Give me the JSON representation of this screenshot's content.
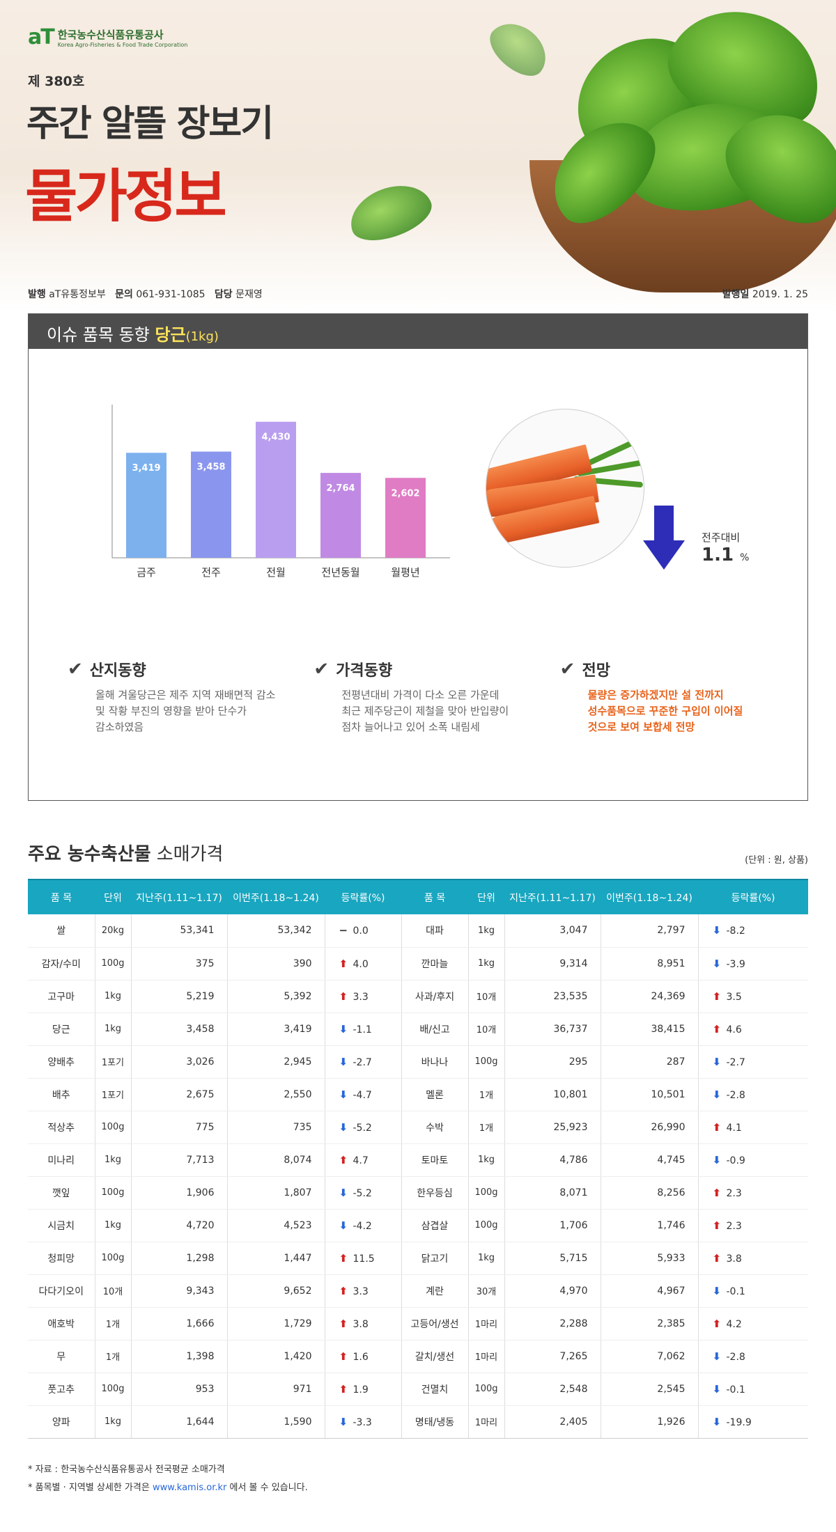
{
  "header": {
    "logo_mark": "aT",
    "logo_ko": "한국농수산식품유통공사",
    "logo_en": "Korea Agro-Fisheries & Food Trade Corporation",
    "issue": "제 380호",
    "title": "주간 알뜰 장보기",
    "big_title": "물가정보"
  },
  "meta": {
    "publisher_label": "발행",
    "publisher": "aT유통정보부",
    "contact_label": "문의",
    "contact": "061-931-1085",
    "manager_label": "담당",
    "manager": "문재영",
    "date_label": "발행일",
    "date": "2019. 1. 25"
  },
  "issue_section": {
    "title": "이슈 품목 동향",
    "item": "당근",
    "unit": "(1kg)",
    "compare_label": "전주대비",
    "compare_value": "1.1",
    "compare_unit": "%",
    "notes": [
      {
        "title": "산지동향",
        "body": [
          "올해 겨울당근은 제주 지역 재배면적 감소",
          "및 작황 부진의 영향을 받아 단수가",
          "감소하였음"
        ]
      },
      {
        "title": "가격동향",
        "body": [
          "전평년대비 가격이 다소 오른 가운데",
          "최근 제주당근이 제철을 맞아 반입량이",
          "점차 늘어나고 있어 소폭 내림세"
        ]
      },
      {
        "title": "전망",
        "body": [
          "물량은 증가하겠지만 설 전까지",
          "성수품목으로 꾸준한 구입이 이어질",
          "것으로 보여 보합세 전망"
        ]
      }
    ]
  },
  "chart_data": {
    "type": "bar",
    "categories": [
      "금주",
      "전주",
      "전월",
      "전년동월",
      "월평년"
    ],
    "values": [
      3419,
      3458,
      4430,
      2764,
      2602
    ],
    "value_labels": [
      "3,419",
      "3,458",
      "4,430",
      "2,764",
      "2,602"
    ],
    "colors": [
      "#7db1ee",
      "#8a96ee",
      "#b99ef0",
      "#c08ae4",
      "#e07cc4"
    ],
    "ylim": [
      0,
      5000
    ]
  },
  "table": {
    "title_bold": "주요 농수축산물",
    "title_rest": " 소매가격",
    "unit_note": "(단위 : 원, 상품)",
    "headers": [
      "품 목",
      "단위",
      "지난주(1.11~1.17)",
      "이번주(1.18~1.24)",
      "등락률(%)",
      "품 목",
      "단위",
      "지난주(1.11~1.17)",
      "이번주(1.18~1.24)",
      "등락률(%)"
    ],
    "rows": [
      [
        "쌀",
        "20kg",
        "53,341",
        "53,342",
        "flat",
        "0.0",
        "대파",
        "1kg",
        "3,047",
        "2,797",
        "down",
        "-8.2"
      ],
      [
        "감자/수미",
        "100g",
        "375",
        "390",
        "up",
        "4.0",
        "깐마늘",
        "1kg",
        "9,314",
        "8,951",
        "down",
        "-3.9"
      ],
      [
        "고구마",
        "1kg",
        "5,219",
        "5,392",
        "up",
        "3.3",
        "사과/후지",
        "10개",
        "23,535",
        "24,369",
        "up",
        "3.5"
      ],
      [
        "당근",
        "1kg",
        "3,458",
        "3,419",
        "down",
        "-1.1",
        "배/신고",
        "10개",
        "36,737",
        "38,415",
        "up",
        "4.6"
      ],
      [
        "양배추",
        "1포기",
        "3,026",
        "2,945",
        "down",
        "-2.7",
        "바나나",
        "100g",
        "295",
        "287",
        "down",
        "-2.7"
      ],
      [
        "배추",
        "1포기",
        "2,675",
        "2,550",
        "down",
        "-4.7",
        "멜론",
        "1개",
        "10,801",
        "10,501",
        "down",
        "-2.8"
      ],
      [
        "적상추",
        "100g",
        "775",
        "735",
        "down",
        "-5.2",
        "수박",
        "1개",
        "25,923",
        "26,990",
        "up",
        "4.1"
      ],
      [
        "미나리",
        "1kg",
        "7,713",
        "8,074",
        "up",
        "4.7",
        "토마토",
        "1kg",
        "4,786",
        "4,745",
        "down",
        "-0.9"
      ],
      [
        "깻잎",
        "100g",
        "1,906",
        "1,807",
        "down",
        "-5.2",
        "한우등심",
        "100g",
        "8,071",
        "8,256",
        "up",
        "2.3"
      ],
      [
        "시금치",
        "1kg",
        "4,720",
        "4,523",
        "down",
        "-4.2",
        "삼겹살",
        "100g",
        "1,706",
        "1,746",
        "up",
        "2.3"
      ],
      [
        "청피망",
        "100g",
        "1,298",
        "1,447",
        "up",
        "11.5",
        "닭고기",
        "1kg",
        "5,715",
        "5,933",
        "up",
        "3.8"
      ],
      [
        "다다기오이",
        "10개",
        "9,343",
        "9,652",
        "up",
        "3.3",
        "계란",
        "30개",
        "4,970",
        "4,967",
        "down",
        "-0.1"
      ],
      [
        "애호박",
        "1개",
        "1,666",
        "1,729",
        "up",
        "3.8",
        "고등어/생선",
        "1마리",
        "2,288",
        "2,385",
        "up",
        "4.2"
      ],
      [
        "무",
        "1개",
        "1,398",
        "1,420",
        "up",
        "1.6",
        "갈치/생선",
        "1마리",
        "7,265",
        "7,062",
        "down",
        "-2.8"
      ],
      [
        "풋고추",
        "100g",
        "953",
        "971",
        "up",
        "1.9",
        "건멸치",
        "100g",
        "2,548",
        "2,545",
        "down",
        "-0.1"
      ],
      [
        "양파",
        "1kg",
        "1,644",
        "1,590",
        "down",
        "-3.3",
        "명태/냉동",
        "1마리",
        "2,405",
        "1,926",
        "down",
        "-19.9"
      ]
    ]
  },
  "footer": {
    "line1": "* 자료 : 한국농수산식품유통공사 전국평균 소매가격",
    "line2_pre": "* 품목별 · 지역별 상세한 가격은 ",
    "link": "www.kamis.or.kr",
    "line2_post": " 에서 볼 수 있습니다."
  }
}
